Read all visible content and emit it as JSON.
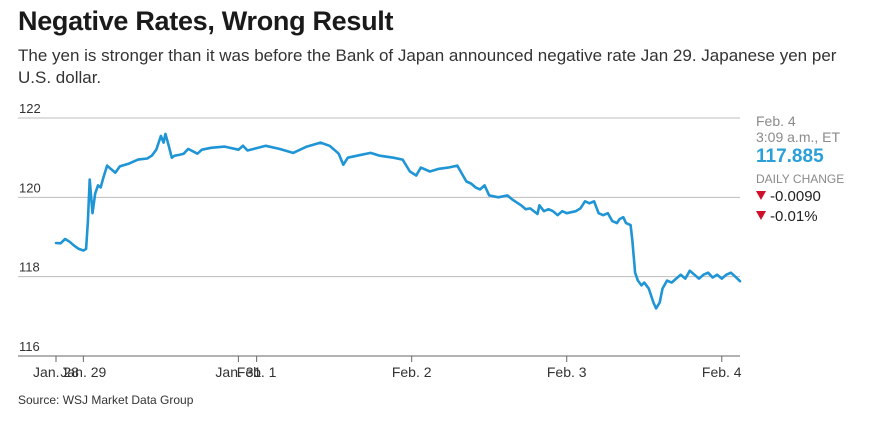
{
  "title": "Negative Rates, Wrong Result",
  "subtitle": "The yen is stronger than it was before the Bank of Japan announced negative rate Jan 29. Japanese yen per U.S. dollar.",
  "source": "Source: WSJ Market Data Group",
  "readout": {
    "date": "Feb. 4",
    "time": "3:09 a.m., ET",
    "value": "117.885",
    "change_label": "DAILY CHANGE",
    "change_abs": "-0.0090",
    "change_pct": "-0.01%"
  },
  "colors": {
    "line": "#1f95d6",
    "value": "#2a9fd8",
    "down": "#d0102a"
  },
  "chart_data": {
    "type": "line",
    "title": "Negative Rates, Wrong Result",
    "ylabel": "Japanese yen per U.S. dollar",
    "ylim": [
      116,
      122
    ],
    "yticks": [
      116,
      118,
      120,
      122
    ],
    "ytick_labels": [
      "116",
      "118",
      "120",
      "122"
    ],
    "grid": true,
    "xlim": [
      0,
      7.5
    ],
    "xticks": [
      0,
      0.3,
      2.0,
      2.2,
      3.9,
      5.6,
      7.3
    ],
    "xtick_labels": [
      "Jan. 28",
      "Jan. 29",
      "Jan. 31",
      "Feb. 1",
      "Feb. 2",
      "Feb. 3",
      "Feb. 4"
    ],
    "series": [
      {
        "values": [
          [
            0.0,
            118.85
          ],
          [
            0.05,
            118.84
          ],
          [
            0.1,
            118.95
          ],
          [
            0.15,
            118.88
          ],
          [
            0.2,
            118.78
          ],
          [
            0.25,
            118.7
          ],
          [
            0.3,
            118.66
          ],
          [
            0.33,
            118.7
          ],
          [
            0.35,
            119.4
          ],
          [
            0.37,
            120.45
          ],
          [
            0.4,
            119.6
          ],
          [
            0.43,
            120.1
          ],
          [
            0.46,
            120.3
          ],
          [
            0.49,
            120.25
          ],
          [
            0.52,
            120.5
          ],
          [
            0.56,
            120.8
          ],
          [
            0.6,
            120.72
          ],
          [
            0.65,
            120.62
          ],
          [
            0.7,
            120.78
          ],
          [
            0.8,
            120.85
          ],
          [
            0.9,
            120.95
          ],
          [
            1.0,
            120.98
          ],
          [
            1.05,
            121.05
          ],
          [
            1.1,
            121.2
          ],
          [
            1.15,
            121.55
          ],
          [
            1.18,
            121.38
          ],
          [
            1.2,
            121.6
          ],
          [
            1.23,
            121.35
          ],
          [
            1.27,
            121.0
          ],
          [
            1.3,
            121.05
          ],
          [
            1.35,
            121.07
          ],
          [
            1.4,
            121.1
          ],
          [
            1.45,
            121.22
          ],
          [
            1.55,
            121.1
          ],
          [
            1.6,
            121.2
          ],
          [
            1.7,
            121.25
          ],
          [
            1.85,
            121.28
          ],
          [
            2.0,
            121.2
          ],
          [
            2.05,
            121.3
          ],
          [
            2.1,
            121.18
          ],
          [
            2.3,
            121.3
          ],
          [
            2.45,
            121.22
          ],
          [
            2.6,
            121.12
          ],
          [
            2.75,
            121.28
          ],
          [
            2.9,
            121.38
          ],
          [
            3.0,
            121.3
          ],
          [
            3.05,
            121.2
          ],
          [
            3.1,
            121.1
          ],
          [
            3.15,
            120.82
          ],
          [
            3.2,
            121.0
          ],
          [
            3.3,
            121.05
          ],
          [
            3.45,
            121.12
          ],
          [
            3.55,
            121.05
          ],
          [
            3.7,
            121.0
          ],
          [
            3.8,
            120.95
          ],
          [
            3.88,
            120.65
          ],
          [
            3.95,
            120.55
          ],
          [
            4.0,
            120.75
          ],
          [
            4.1,
            120.65
          ],
          [
            4.2,
            120.72
          ],
          [
            4.3,
            120.75
          ],
          [
            4.4,
            120.8
          ],
          [
            4.45,
            120.6
          ],
          [
            4.5,
            120.4
          ],
          [
            4.55,
            120.35
          ],
          [
            4.6,
            120.25
          ],
          [
            4.65,
            120.2
          ],
          [
            4.7,
            120.3
          ],
          [
            4.75,
            120.05
          ],
          [
            4.85,
            120.0
          ],
          [
            4.95,
            120.05
          ],
          [
            5.0,
            119.95
          ],
          [
            5.1,
            119.8
          ],
          [
            5.15,
            119.7
          ],
          [
            5.2,
            119.72
          ],
          [
            5.28,
            119.58
          ],
          [
            5.3,
            119.8
          ],
          [
            5.35,
            119.65
          ],
          [
            5.4,
            119.7
          ],
          [
            5.45,
            119.65
          ],
          [
            5.5,
            119.55
          ],
          [
            5.55,
            119.65
          ],
          [
            5.6,
            119.6
          ],
          [
            5.7,
            119.65
          ],
          [
            5.75,
            119.72
          ],
          [
            5.8,
            119.9
          ],
          [
            5.85,
            119.85
          ],
          [
            5.9,
            119.9
          ],
          [
            5.95,
            119.6
          ],
          [
            6.0,
            119.55
          ],
          [
            6.05,
            119.6
          ],
          [
            6.1,
            119.4
          ],
          [
            6.15,
            119.35
          ],
          [
            6.18,
            119.45
          ],
          [
            6.22,
            119.5
          ],
          [
            6.25,
            119.35
          ],
          [
            6.3,
            119.3
          ],
          [
            6.32,
            118.9
          ],
          [
            6.35,
            118.1
          ],
          [
            6.38,
            117.9
          ],
          [
            6.42,
            117.78
          ],
          [
            6.45,
            117.85
          ],
          [
            6.5,
            117.7
          ],
          [
            6.55,
            117.35
          ],
          [
            6.58,
            117.2
          ],
          [
            6.62,
            117.35
          ],
          [
            6.65,
            117.7
          ],
          [
            6.7,
            117.9
          ],
          [
            6.75,
            117.85
          ],
          [
            6.8,
            117.95
          ],
          [
            6.85,
            118.05
          ],
          [
            6.9,
            117.95
          ],
          [
            6.95,
            118.15
          ],
          [
            7.0,
            118.05
          ],
          [
            7.05,
            117.95
          ],
          [
            7.1,
            118.05
          ],
          [
            7.15,
            118.1
          ],
          [
            7.2,
            117.98
          ],
          [
            7.25,
            118.05
          ],
          [
            7.3,
            117.95
          ],
          [
            7.35,
            118.05
          ],
          [
            7.4,
            118.1
          ],
          [
            7.45,
            118.0
          ],
          [
            7.5,
            117.885
          ]
        ]
      }
    ]
  }
}
